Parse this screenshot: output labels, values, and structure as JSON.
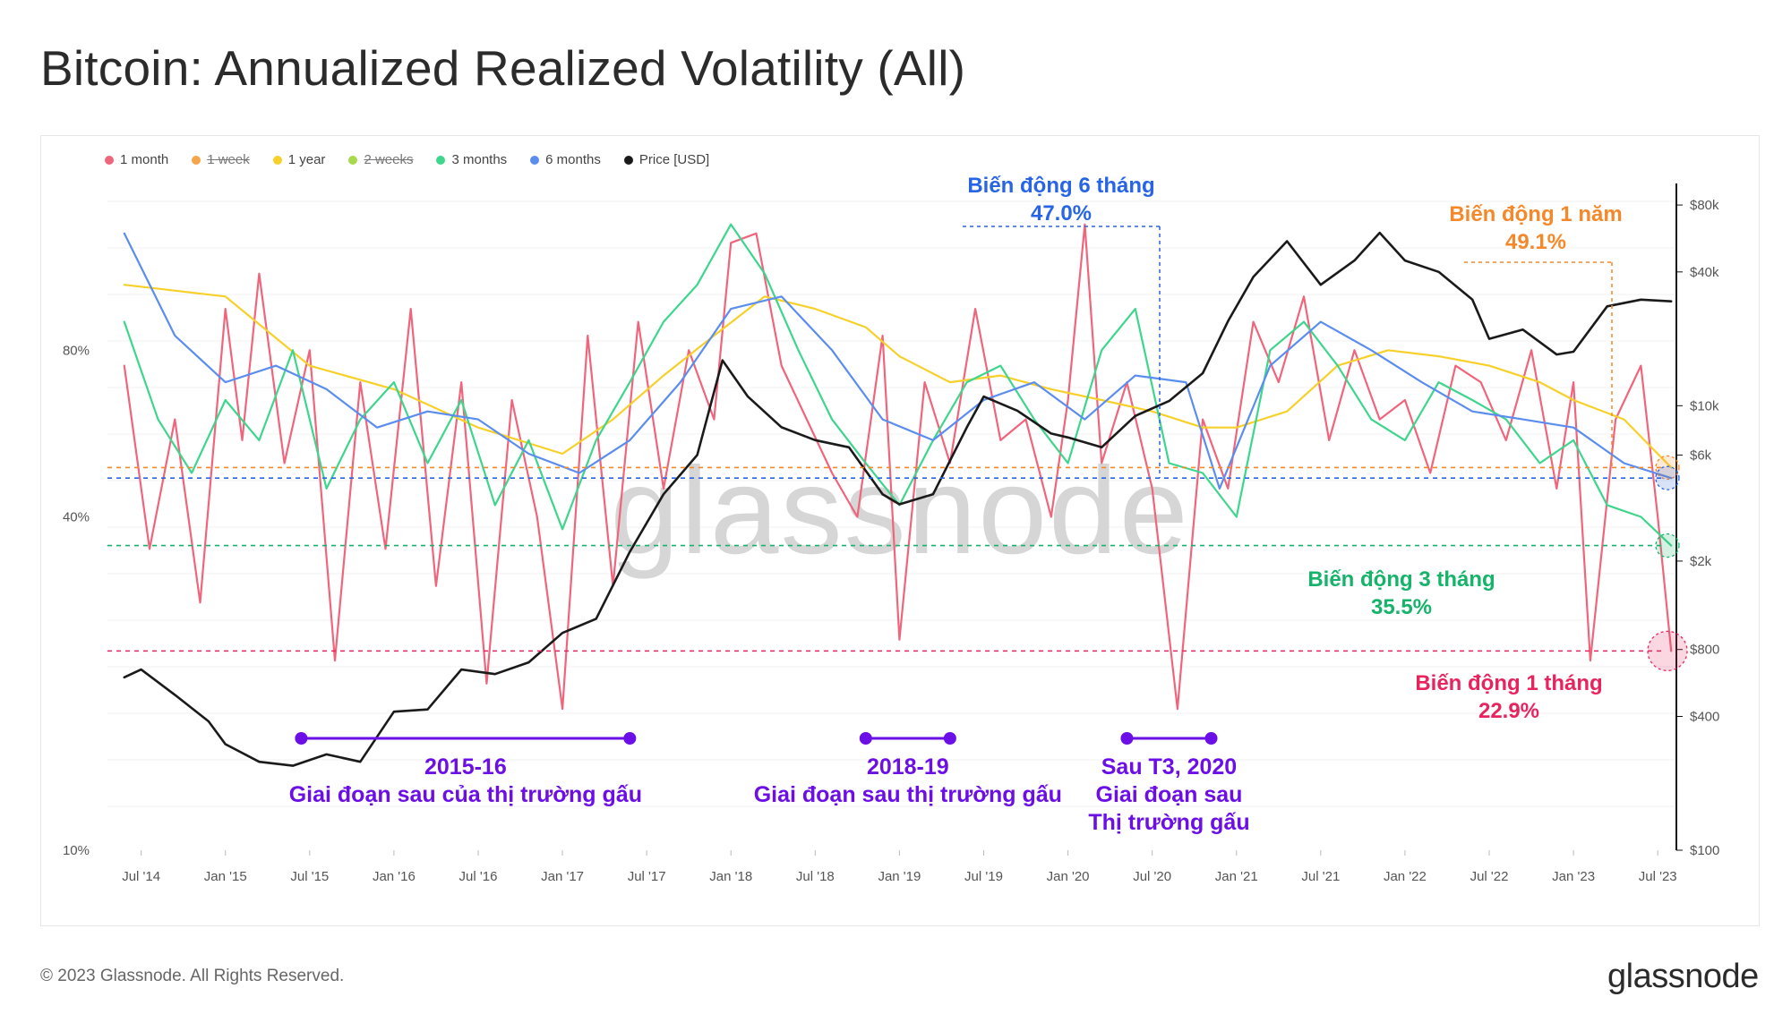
{
  "title": "Bitcoin: Annualized Realized Volatility (All)",
  "legend": [
    {
      "label": "1 month",
      "color": "#f0657b",
      "active": true
    },
    {
      "label": "1 week",
      "color": "#f5a64a",
      "active": false
    },
    {
      "label": "1 year",
      "color": "#f7d02a",
      "active": true
    },
    {
      "label": "2 weeks",
      "color": "#a6d94c",
      "active": false
    },
    {
      "label": "3 months",
      "color": "#3dd68c",
      "active": true
    },
    {
      "label": "6 months",
      "color": "#5b8def",
      "active": true
    },
    {
      "label": "Price [USD]",
      "color": "#1a1a1a",
      "active": true
    }
  ],
  "chart_data": {
    "type": "line",
    "title": "Bitcoin: Annualized Realized Volatility (All)",
    "x_ticks": [
      "Jul '14",
      "Jan '15",
      "Jul '15",
      "Jan '16",
      "Jul '16",
      "Jan '17",
      "Jul '17",
      "Jan '18",
      "Jul '18",
      "Jan '19",
      "Jul '19",
      "Jan '20",
      "Jul '20",
      "Jan '21",
      "Jul '21",
      "Jan '22",
      "Jul '22",
      "Jan '23",
      "Jul '23"
    ],
    "x_range": [
      2014.3,
      2023.6
    ],
    "y_left": {
      "scale": "log",
      "ticks": [
        "80%",
        "40%",
        "10%"
      ],
      "range": [
        10,
        160
      ]
    },
    "y_right": {
      "scale": "log",
      "ticks": [
        "$80k",
        "$40k",
        "$10k",
        "$6k",
        "$2k",
        "$800",
        "$400",
        "$100"
      ],
      "range": [
        100,
        100000
      ]
    },
    "series": [
      {
        "name": "1 month",
        "color": "#f0657b",
        "x": [
          2014.4,
          2014.55,
          2014.7,
          2014.85,
          2015.0,
          2015.1,
          2015.2,
          2015.35,
          2015.5,
          2015.65,
          2015.8,
          2015.95,
          2016.1,
          2016.25,
          2016.4,
          2016.55,
          2016.7,
          2016.85,
          2017.0,
          2017.15,
          2017.3,
          2017.45,
          2017.6,
          2017.75,
          2017.9,
          2018.0,
          2018.15,
          2018.3,
          2018.45,
          2018.6,
          2018.75,
          2018.9,
          2019.0,
          2019.15,
          2019.3,
          2019.45,
          2019.6,
          2019.75,
          2019.9,
          2020.0,
          2020.1,
          2020.2,
          2020.35,
          2020.5,
          2020.65,
          2020.8,
          2020.95,
          2021.1,
          2021.25,
          2021.4,
          2021.55,
          2021.7,
          2021.85,
          2022.0,
          2022.15,
          2022.3,
          2022.45,
          2022.6,
          2022.75,
          2022.9,
          2023.0,
          2023.1,
          2023.25,
          2023.4,
          2023.5,
          2023.58
        ],
        "values": [
          75,
          35,
          60,
          28,
          95,
          55,
          110,
          50,
          80,
          22,
          70,
          35,
          95,
          30,
          70,
          20,
          65,
          40,
          18,
          85,
          30,
          90,
          45,
          80,
          60,
          125,
          130,
          75,
          60,
          48,
          40,
          85,
          24,
          70,
          50,
          95,
          55,
          60,
          40,
          65,
          135,
          50,
          70,
          45,
          18,
          60,
          45,
          90,
          70,
          100,
          55,
          80,
          60,
          65,
          48,
          75,
          70,
          55,
          80,
          45,
          70,
          22,
          60,
          75,
          40,
          22.9
        ]
      },
      {
        "name": "1 year",
        "color": "#f7d02a",
        "x": [
          2014.4,
          2015.0,
          2015.5,
          2016.0,
          2016.5,
          2017.0,
          2017.3,
          2017.6,
          2017.9,
          2018.2,
          2018.5,
          2018.8,
          2019.0,
          2019.3,
          2019.6,
          2019.9,
          2020.2,
          2020.5,
          2020.8,
          2021.0,
          2021.3,
          2021.6,
          2021.9,
          2022.2,
          2022.5,
          2022.8,
          2023.0,
          2023.3,
          2023.58
        ],
        "values": [
          105,
          100,
          75,
          68,
          58,
          52,
          60,
          72,
          85,
          100,
          95,
          88,
          78,
          70,
          72,
          68,
          65,
          62,
          58,
          58,
          62,
          75,
          80,
          78,
          75,
          70,
          65,
          60,
          49.1
        ]
      },
      {
        "name": "3 months",
        "color": "#3dd68c",
        "x": [
          2014.4,
          2014.6,
          2014.8,
          2015.0,
          2015.2,
          2015.4,
          2015.6,
          2015.8,
          2016.0,
          2016.2,
          2016.4,
          2016.6,
          2016.8,
          2017.0,
          2017.2,
          2017.4,
          2017.6,
          2017.8,
          2018.0,
          2018.2,
          2018.4,
          2018.6,
          2018.8,
          2019.0,
          2019.2,
          2019.4,
          2019.6,
          2019.8,
          2020.0,
          2020.2,
          2020.4,
          2020.6,
          2020.8,
          2021.0,
          2021.2,
          2021.4,
          2021.6,
          2021.8,
          2022.0,
          2022.2,
          2022.4,
          2022.6,
          2022.8,
          2023.0,
          2023.2,
          2023.4,
          2023.58
        ],
        "values": [
          90,
          60,
          48,
          65,
          55,
          80,
          45,
          60,
          70,
          50,
          65,
          42,
          55,
          38,
          55,
          70,
          90,
          105,
          135,
          110,
          80,
          60,
          50,
          42,
          55,
          70,
          75,
          60,
          50,
          80,
          95,
          50,
          48,
          40,
          80,
          90,
          75,
          60,
          55,
          70,
          65,
          60,
          50,
          55,
          42,
          40,
          35.5
        ]
      },
      {
        "name": "6 months",
        "color": "#5b8def",
        "x": [
          2014.4,
          2014.7,
          2015.0,
          2015.3,
          2015.6,
          2015.9,
          2016.2,
          2016.5,
          2016.8,
          2017.1,
          2017.4,
          2017.7,
          2018.0,
          2018.3,
          2018.6,
          2018.9,
          2019.2,
          2019.5,
          2019.8,
          2020.1,
          2020.4,
          2020.7,
          2020.9,
          2021.2,
          2021.5,
          2021.8,
          2022.1,
          2022.4,
          2022.7,
          2023.0,
          2023.3,
          2023.58
        ],
        "values": [
          130,
          85,
          70,
          75,
          68,
          58,
          62,
          60,
          52,
          48,
          55,
          70,
          95,
          100,
          80,
          60,
          55,
          65,
          70,
          60,
          72,
          70,
          45,
          75,
          90,
          80,
          70,
          62,
          60,
          58,
          50,
          47.0
        ]
      },
      {
        "name": "Price [USD]",
        "color": "#1a1a1a",
        "axis": "right",
        "x": [
          2014.4,
          2014.5,
          2014.7,
          2014.9,
          2015.0,
          2015.2,
          2015.4,
          2015.6,
          2015.8,
          2016.0,
          2016.2,
          2016.4,
          2016.6,
          2016.8,
          2017.0,
          2017.2,
          2017.4,
          2017.6,
          2017.8,
          2017.95,
          2018.1,
          2018.3,
          2018.5,
          2018.7,
          2018.9,
          2019.0,
          2019.2,
          2019.4,
          2019.5,
          2019.7,
          2019.9,
          2020.0,
          2020.2,
          2020.4,
          2020.6,
          2020.8,
          2020.95,
          2021.1,
          2021.3,
          2021.5,
          2021.7,
          2021.85,
          2022.0,
          2022.2,
          2022.4,
          2022.5,
          2022.7,
          2022.9,
          2023.0,
          2023.2,
          2023.4,
          2023.58
        ],
        "values": [
          600,
          650,
          500,
          380,
          300,
          250,
          240,
          270,
          250,
          420,
          430,
          650,
          620,
          700,
          950,
          1100,
          2200,
          4000,
          6000,
          16000,
          11000,
          8000,
          7000,
          6500,
          4000,
          3600,
          4000,
          8000,
          11000,
          9500,
          7500,
          7200,
          6500,
          9000,
          10500,
          14000,
          24000,
          38000,
          55000,
          35000,
          45000,
          60000,
          45000,
          40000,
          30000,
          20000,
          22000,
          17000,
          17500,
          28000,
          30000,
          29500
        ]
      }
    ],
    "reference_lines": [
      {
        "label": "Biến động 1 năm",
        "value": 49.1,
        "display": "49.1%",
        "color": "#f5882a"
      },
      {
        "label": "Biến động 6 tháng",
        "value": 47.0,
        "display": "47.0%",
        "color": "#2764e6"
      },
      {
        "label": "Biến động 3 tháng",
        "value": 35.5,
        "display": "35.5%",
        "color": "#16b36b"
      },
      {
        "label": "Biến động 1 tháng",
        "value": 22.9,
        "display": "22.9%",
        "color": "#e8245f"
      }
    ],
    "periods": [
      {
        "start": 2015.45,
        "end": 2017.4,
        "label1": "2015-16",
        "label2": "Giai đoạn sau của thị trường gấu",
        "label3": ""
      },
      {
        "start": 2018.8,
        "end": 2019.3,
        "label1": "2018-19",
        "label2": "Giai đoạn sau thị trường gấu",
        "label3": ""
      },
      {
        "start": 2020.35,
        "end": 2020.85,
        "label1": "Sau T3, 2020",
        "label2": "Giai đoạn sau",
        "label3": "Thị trường gấu"
      }
    ]
  },
  "watermark": "glassnode",
  "footer": {
    "copyright": "© 2023 Glassnode. All Rights Reserved.",
    "logo": "glassnode"
  }
}
